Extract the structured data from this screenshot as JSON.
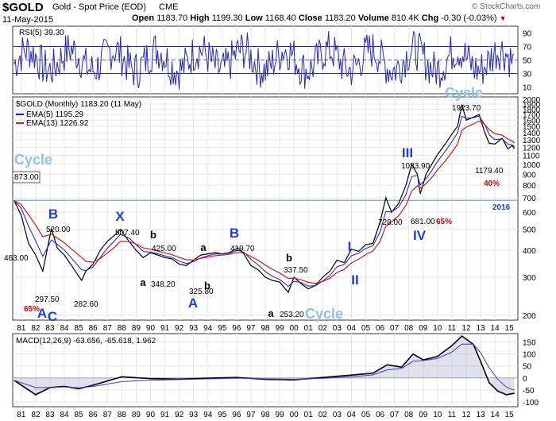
{
  "header": {
    "symbol": "$GOLD",
    "name": "Gold - Spot Price (EOD)",
    "exchange": "CME",
    "date": "11-May-2015",
    "ohlc": {
      "open_label": "Open",
      "open": "1183.70",
      "high_label": "High",
      "high": "1199.30",
      "low_label": "Low",
      "low": "1168.40",
      "close_label": "Close",
      "close": "1183.20",
      "volume_label": "Volume",
      "volume": "810.4K",
      "chg_label": "Chg",
      "chg": "-0.30 (-0.03%)"
    },
    "copyright": "© StockCharts.com"
  },
  "colors": {
    "price": "#000000",
    "ema5": "#1a1acc",
    "ema13": "#cc1a1a",
    "rsi": "#2a2aa8",
    "wave_label": "#1f3fcc",
    "cycle_label": "#8fc2e6",
    "horizontal_line": "#7fb6e0",
    "percent": "#d40000",
    "macd_fill": "#a8a8c8"
  },
  "chart_data": [
    {
      "type": "line",
      "panel": "RSI",
      "legend": "RSI(5) 39.30",
      "y_ticks": [
        10,
        30,
        50,
        70,
        90
      ],
      "ylim": [
        0,
        100
      ],
      "levels": [
        30,
        70
      ],
      "midline": 50
    },
    {
      "type": "line",
      "panel": "price",
      "scale": "log",
      "legend": {
        "title": "$GOLD (Monthly) 1183.20 (11 May)",
        "entries": [
          {
            "name": "EMA(5) 1195.29"
          },
          {
            "name": "EMA(13) 1226.92"
          }
        ]
      },
      "x_ticks": [
        "81",
        "82",
        "83",
        "84",
        "85",
        "86",
        "87",
        "88",
        "89",
        "90",
        "91",
        "92",
        "93",
        "94",
        "95",
        "96",
        "97",
        "98",
        "99",
        "00",
        "01",
        "02",
        "03",
        "04",
        "05",
        "06",
        "07",
        "08",
        "09",
        "10",
        "11",
        "12",
        "13",
        "14",
        "15"
      ],
      "y_ticks": [
        200,
        300,
        400,
        500,
        600,
        700,
        800,
        900,
        1000,
        1100,
        1200,
        1300,
        1400,
        1500,
        1600,
        1700,
        1800,
        1900,
        2000
      ],
      "ylim": [
        190,
        2050
      ],
      "horizontal_line": 681,
      "series": [
        {
          "x": [
            1980.5,
            1981.0,
            1981.5,
            1982.0,
            1982.5,
            1983.1,
            1983.5,
            1984.0,
            1984.5,
            1985.2,
            1985.5,
            1986.0,
            1986.5,
            1987.0,
            1987.5,
            1987.9,
            1988.5,
            1989.0,
            1989.5,
            1990.0,
            1990.5,
            1991.0,
            1991.5,
            1992.0,
            1992.5,
            1993.0,
            1993.5,
            1994.0,
            1994.5,
            1995.0,
            1995.5,
            1996.1,
            1996.5,
            1997.0,
            1997.5,
            1998.0,
            1998.5,
            1999.0,
            1999.6,
            2000.0,
            2000.5,
            2001.0,
            2001.5,
            2002.0,
            2002.5,
            2003.0,
            2003.5,
            2004.0,
            2004.5,
            2005.0,
            2005.5,
            2006.0,
            2006.4,
            2006.8,
            2007.3,
            2007.8,
            2008.2,
            2008.6,
            2008.8,
            2009.2,
            2009.6,
            2010.0,
            2010.5,
            2011.0,
            2011.4,
            2011.7,
            2012.0,
            2012.5,
            2012.9,
            2013.3,
            2013.6,
            2014.0,
            2014.5,
            2014.9,
            2015.2,
            2015.36
          ],
          "y": [
            680,
            580,
            430,
            380,
            320,
            505,
            410,
            380,
            340,
            290,
            320,
            345,
            400,
            440,
            470,
            500,
            440,
            400,
            370,
            390,
            380,
            370,
            365,
            345,
            340,
            360,
            380,
            385,
            390,
            385,
            390,
            410,
            385,
            340,
            325,
            300,
            290,
            285,
            255,
            300,
            280,
            265,
            275,
            300,
            320,
            360,
            350,
            405,
            395,
            425,
            430,
            540,
            700,
            600,
            660,
            800,
            1000,
            900,
            730,
            900,
            1000,
            1110,
            1230,
            1380,
            1500,
            1890,
            1600,
            1650,
            1700,
            1400,
            1250,
            1240,
            1320,
            1180,
            1220,
            1183
          ]
        }
      ],
      "annotations": [
        {
          "text": "Cycle",
          "kind": "cycle"
        },
        {
          "text": "873.00",
          "kind": "value"
        },
        {
          "text": "B",
          "kind": "wave"
        },
        {
          "text": "520.00",
          "kind": "value"
        },
        {
          "text": "X",
          "kind": "wave"
        },
        {
          "text": "507.40",
          "kind": "value"
        },
        {
          "text": "b",
          "kind": "subwave"
        },
        {
          "text": "425.00",
          "kind": "value"
        },
        {
          "text": "a",
          "kind": "subwave"
        },
        {
          "text": "B",
          "kind": "wave"
        },
        {
          "text": "419.70",
          "kind": "value"
        },
        {
          "text": "b",
          "kind": "subwave"
        },
        {
          "text": "337.50",
          "kind": "value"
        },
        {
          "text": "463.00",
          "kind": "value"
        },
        {
          "text": "297.50",
          "kind": "value"
        },
        {
          "text": "65%",
          "kind": "percent"
        },
        {
          "text": "A",
          "kind": "wave"
        },
        {
          "text": "C",
          "kind": "wave"
        },
        {
          "text": "282.60",
          "kind": "value"
        },
        {
          "text": "a",
          "kind": "subwave"
        },
        {
          "text": "348.20",
          "kind": "value"
        },
        {
          "text": "325.80",
          "kind": "value"
        },
        {
          "text": "b",
          "kind": "subwave"
        },
        {
          "text": "A",
          "kind": "wave"
        },
        {
          "text": "a",
          "kind": "subwave"
        },
        {
          "text": "253.20",
          "kind": "value"
        },
        {
          "text": "Cycle",
          "kind": "cycle"
        },
        {
          "text": "I",
          "kind": "wave"
        },
        {
          "text": "II",
          "kind": "wave"
        },
        {
          "text": "728.00",
          "kind": "value"
        },
        {
          "text": "III",
          "kind": "wave"
        },
        {
          "text": "1033.90",
          "kind": "value"
        },
        {
          "text": "681.00",
          "kind": "value"
        },
        {
          "text": "65%",
          "kind": "percent"
        },
        {
          "text": "IV",
          "kind": "wave"
        },
        {
          "text": "Cycle",
          "kind": "cycle"
        },
        {
          "text": "1923.70",
          "kind": "value"
        },
        {
          "text": "1179.40",
          "kind": "value"
        },
        {
          "text": "40%",
          "kind": "percent"
        },
        {
          "text": "2016",
          "kind": "year"
        }
      ]
    },
    {
      "type": "line",
      "panel": "MACD",
      "legend": "MACD(12,26,9) -63.656, -65.618, 1.962",
      "y_ticks": [
        -100,
        -50,
        0,
        50,
        100,
        150
      ],
      "ylim": [
        -120,
        185
      ],
      "x_ticks": [
        "81",
        "82",
        "83",
        "84",
        "85",
        "86",
        "87",
        "88",
        "89",
        "90",
        "91",
        "92",
        "93",
        "94",
        "95",
        "96",
        "97",
        "98",
        "99",
        "00",
        "01",
        "02",
        "03",
        "04",
        "05",
        "06",
        "07",
        "08",
        "09",
        "10",
        "11",
        "12",
        "13",
        "14",
        "15"
      ],
      "series": [
        {
          "x": [
            1980.5,
            1982.0,
            1983.0,
            1984.0,
            1985.0,
            1986.0,
            1988.0,
            1990.0,
            1992.0,
            1994.0,
            1996.0,
            1998.0,
            2000.0,
            2002.0,
            2004.0,
            2005.5,
            2006.5,
            2007.5,
            2008.3,
            2009.0,
            2010.0,
            2011.0,
            2011.7,
            2012.5,
            2013.0,
            2013.6,
            2014.2,
            2014.8,
            2015.36
          ],
          "y": [
            -10,
            -70,
            -40,
            -35,
            -45,
            -30,
            5,
            -3,
            -5,
            -1,
            2,
            -6,
            -8,
            2,
            12,
            20,
            55,
            45,
            100,
            75,
            90,
            135,
            175,
            140,
            70,
            -20,
            -55,
            -70,
            -64
          ]
        }
      ]
    }
  ]
}
